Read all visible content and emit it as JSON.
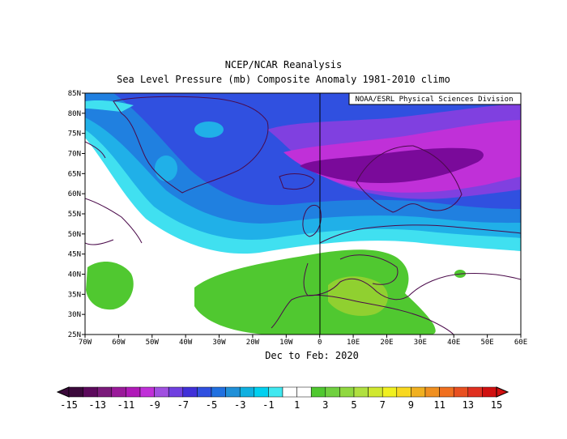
{
  "title_line1": "NCEP/NCAR Reanalysis",
  "title_line2": "Sea Level Pressure (mb) Composite Anomaly 1981-2010 climo",
  "credit": "NOAA/ESRL Physical Sciences Division",
  "period": "Dec to Feb: 2020",
  "lat_ticks": [
    "85N",
    "80N",
    "75N",
    "70N",
    "65N",
    "60N",
    "55N",
    "50N",
    "45N",
    "40N",
    "35N",
    "30N",
    "25N"
  ],
  "lon_ticks": [
    "70W",
    "60W",
    "50W",
    "40W",
    "30W",
    "20W",
    "10W",
    "0",
    "10E",
    "20E",
    "30E",
    "40E",
    "50E",
    "60E"
  ],
  "colorbar": {
    "labels": [
      "-15",
      "-13",
      "-11",
      "-9",
      "-7",
      "-5",
      "-3",
      "-1",
      "1",
      "3",
      "5",
      "7",
      "9",
      "11",
      "13",
      "15"
    ],
    "colors": [
      "#3b0a3b",
      "#5c0a5c",
      "#7a1a7a",
      "#9a1a9a",
      "#b01ab8",
      "#c030d8",
      "#a050e0",
      "#7040e0",
      "#4030d8",
      "#3050e0",
      "#2070e0",
      "#2090d8",
      "#10b0e0",
      "#00d0f0",
      "#40e8f0",
      "#ffffff",
      "#ffffff",
      "#50c830",
      "#70d040",
      "#90d840",
      "#b0e040",
      "#d0e830",
      "#f0f020",
      "#f8d820",
      "#f0b020",
      "#f09020",
      "#f07020",
      "#e85020",
      "#e03020",
      "#d01010"
    ]
  },
  "map_colors": {
    "deep_purple": "#7a0a9a",
    "purple": "#c030d8",
    "violet": "#8040e0",
    "blue": "#3050e0",
    "mid_blue": "#2080e0",
    "light_blue": "#20b0e8",
    "cyan": "#40e0f0",
    "green": "#50c830",
    "yellow_green": "#90d030",
    "land_outline": "#4a0a4a"
  }
}
